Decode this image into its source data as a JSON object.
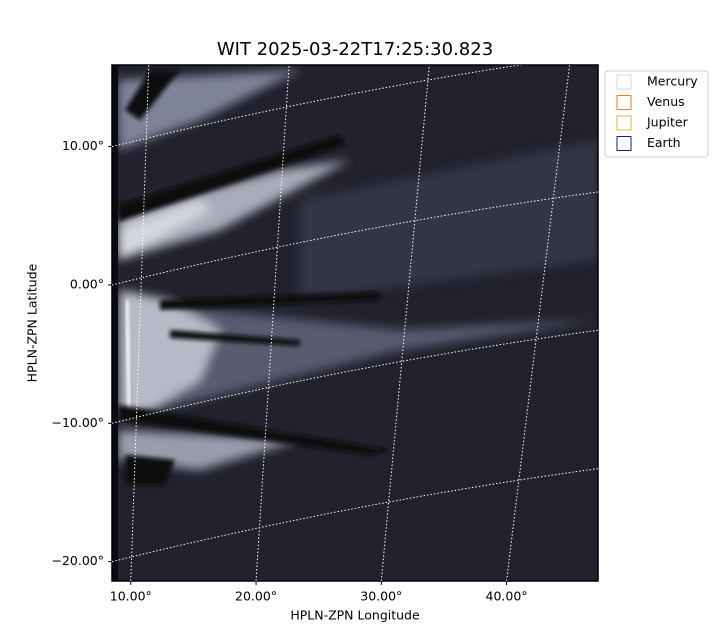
{
  "chart_data": {
    "type": "image",
    "title": "WIT 2025-03-22T17:25:30.823",
    "xlabel": "HPLN-ZPN Longitude",
    "ylabel": "HPLN-ZPN Latitude",
    "xlim": [
      8.5,
      47.3
    ],
    "ylim": [
      -21.4,
      15.9
    ],
    "xticks": [
      {
        "value": 10,
        "label": "10.00°"
      },
      {
        "value": 20,
        "label": "20.00°"
      },
      {
        "value": 30,
        "label": "30.00°"
      },
      {
        "value": 40,
        "label": "40.00°"
      }
    ],
    "yticks": [
      {
        "value": -20,
        "label": "−20.00°"
      },
      {
        "value": -10,
        "label": "−10.00°"
      },
      {
        "value": 0,
        "label": "0.00°"
      },
      {
        "value": 10,
        "label": "10.00°"
      }
    ],
    "grid": true,
    "legend": "upper right",
    "series": [
      {
        "name": "Mercury",
        "color": "#d9d9d9"
      },
      {
        "name": "Venus",
        "color": "#e07b39"
      },
      {
        "name": "Jupiter",
        "color": "#e0b030"
      },
      {
        "name": "Earth",
        "color": "#1a1a80"
      }
    ]
  }
}
